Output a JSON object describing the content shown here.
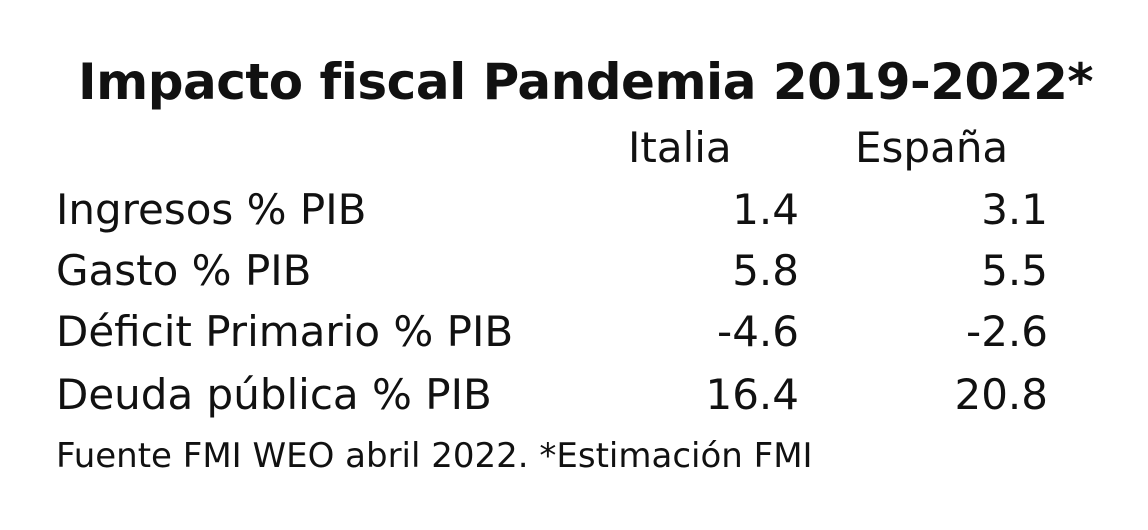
{
  "chart_data": {
    "type": "table",
    "title": "Impacto fiscal Pandemia 2019-2022*",
    "columns": [
      "Italia",
      "España"
    ],
    "rows": [
      {
        "label": "Ingresos % PIB",
        "values": [
          "1.4",
          "3.1"
        ]
      },
      {
        "label": "Gasto % PIB",
        "values": [
          "5.8",
          "5.5"
        ]
      },
      {
        "label": "Déficit Primario % PIB",
        "values": [
          "-4.6",
          "-2.6"
        ]
      },
      {
        "label": "Deuda pública % PIB",
        "values": [
          "16.4",
          "20.8"
        ]
      }
    ],
    "source": "Fuente FMI WEO abril 2022. *Estimación FMI"
  }
}
